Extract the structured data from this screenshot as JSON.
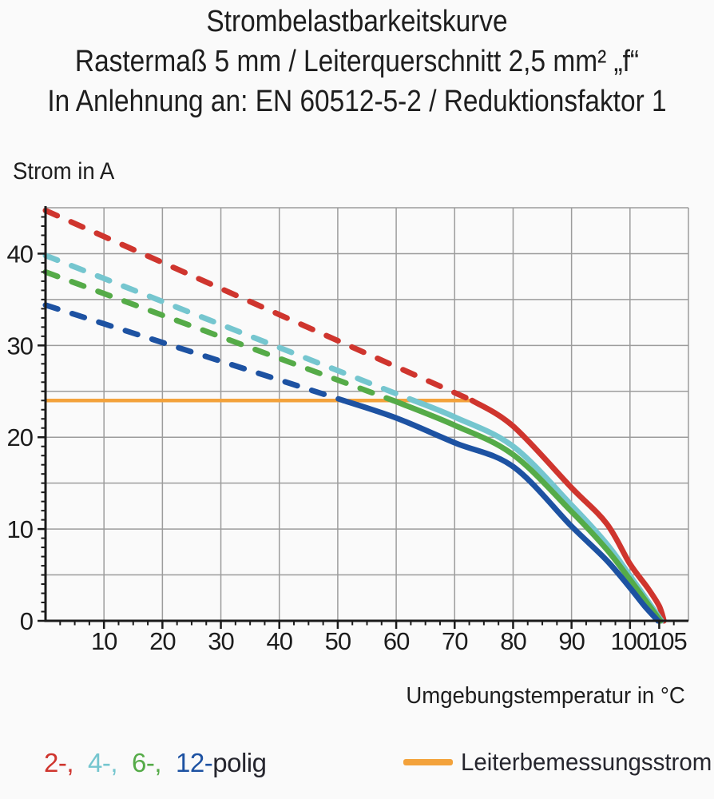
{
  "title": {
    "line1": "Strombelastbarkeitskurve",
    "line2": "Rastermaß 5 mm / Leiterquerschnitt 2,5 mm² „f“",
    "line3": "In Anlehnung an: EN 60512-5-2 / Reduktionsfaktor 1"
  },
  "axes": {
    "y_label": "Strom in A",
    "x_label": "Umgebungstemperatur in °C"
  },
  "legend": {
    "poles": [
      {
        "label": "2-,",
        "color": "#cf352e"
      },
      {
        "label": "4-,",
        "color": "#75c6cf"
      },
      {
        "label": "6-,",
        "color": "#55ab48"
      },
      {
        "label": "12-",
        "color": "#1d52a2"
      }
    ],
    "suffix": "polig",
    "rated_label": "Leiterbemessungsstrom",
    "rated_color": "#f3a23b"
  },
  "chart_data": {
    "type": "line",
    "title": "Strombelastbarkeitskurve",
    "xlabel": "Umgebungstemperatur in °C",
    "ylabel": "Strom in A",
    "xlim": [
      0,
      110
    ],
    "ylim": [
      0,
      45
    ],
    "x_major_ticks": [
      10,
      20,
      30,
      40,
      50,
      60,
      70,
      80,
      90,
      100,
      105
    ],
    "x_minor_step": 2.5,
    "y_major_ticks": [
      0,
      10,
      20,
      30,
      40
    ],
    "y_minor_step": 1,
    "x_grid": [
      10,
      20,
      30,
      40,
      50,
      60,
      70,
      80,
      90,
      100
    ],
    "y_grid": [
      5,
      10,
      15,
      20,
      25,
      30,
      35,
      40
    ],
    "grid_color": "#9c9c9c",
    "axis_color": "#1a1a1a",
    "legend_position": "bottom",
    "grid": true,
    "series": [
      {
        "name": "2-polig",
        "color": "#cf352e",
        "dashed": [
          [
            0,
            44.7
          ],
          [
            73,
            24
          ]
        ],
        "solid": [
          [
            73,
            24
          ],
          [
            80,
            21.2
          ],
          [
            90,
            14.5
          ],
          [
            96,
            10.6
          ],
          [
            100,
            6.2
          ],
          [
            103,
            3.6
          ],
          [
            105,
            1.6
          ],
          [
            105.8,
            0
          ]
        ]
      },
      {
        "name": "4-polig",
        "color": "#75c6cf",
        "dashed": [
          [
            0,
            39.8
          ],
          [
            63,
            24
          ]
        ],
        "solid": [
          [
            63,
            24
          ],
          [
            70,
            22.2
          ],
          [
            80,
            19.0
          ],
          [
            90,
            12.6
          ],
          [
            96,
            8.4
          ],
          [
            100,
            4.9
          ],
          [
            103,
            2.2
          ],
          [
            105.4,
            0
          ]
        ]
      },
      {
        "name": "6-polig",
        "color": "#55ab48",
        "dashed": [
          [
            0,
            38.0
          ],
          [
            59.5,
            24
          ]
        ],
        "solid": [
          [
            59.5,
            24
          ],
          [
            70,
            21.3
          ],
          [
            80,
            18.1
          ],
          [
            90,
            11.9
          ],
          [
            96,
            7.8
          ],
          [
            100,
            4.5
          ],
          [
            103,
            1.9
          ],
          [
            105.2,
            0
          ]
        ]
      },
      {
        "name": "12-polig",
        "color": "#1d52a2",
        "dashed": [
          [
            0,
            34.4
          ],
          [
            51,
            24
          ]
        ],
        "solid": [
          [
            51,
            24
          ],
          [
            60,
            22.1
          ],
          [
            70,
            19.4
          ],
          [
            80,
            16.8
          ],
          [
            90,
            10.3
          ],
          [
            96,
            6.6
          ],
          [
            100,
            3.6
          ],
          [
            102.5,
            1.6
          ],
          [
            104.8,
            0
          ]
        ]
      }
    ],
    "rated_line": {
      "name": "Leiterbemessungsstrom",
      "color": "#f3a23b",
      "value": 24,
      "x_start": 0,
      "x_end": 73.5
    }
  }
}
